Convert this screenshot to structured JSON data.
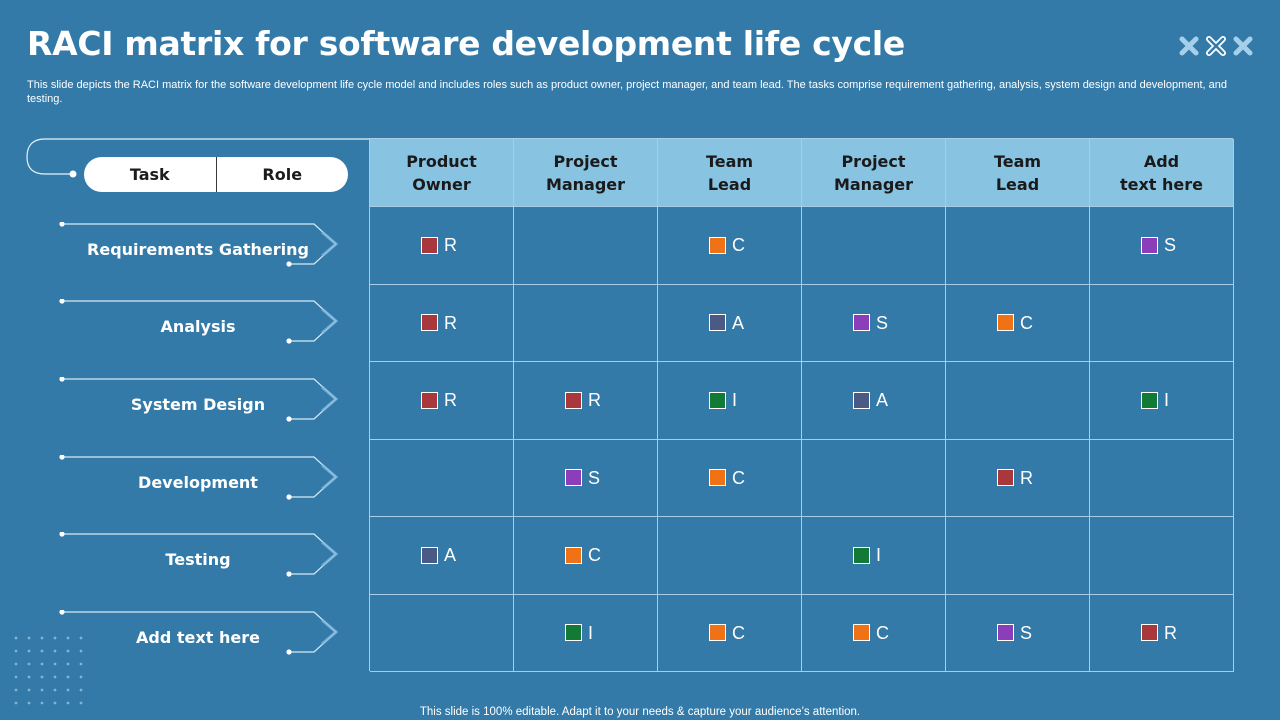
{
  "title": "RACI matrix for software development life cycle",
  "subtitle": "This slide depicts the RACI matrix for the software development life cycle model and includes roles such as product owner, project manager, and team lead. The tasks comprise requirement gathering, analysis, system design and development, and testing.",
  "footer": "This slide is 100% editable. Adapt it to your needs & capture your audience’s attention.",
  "pill": {
    "task": "Task",
    "role": "Role"
  },
  "columns": [
    {
      "line1": "Product",
      "line2": "Owner"
    },
    {
      "line1": "Project",
      "line2": "Manager"
    },
    {
      "line1": "Team",
      "line2": "Lead"
    },
    {
      "line1": "Project",
      "line2": "Manager"
    },
    {
      "line1": "Team",
      "line2": "Lead"
    },
    {
      "line1": "Add",
      "line2": "text here"
    }
  ],
  "tasks": [
    "Requirements Gathering",
    "Analysis",
    "System Design",
    "Development",
    "Testing",
    "Add text here"
  ],
  "legend_colors": {
    "R": "#a8383b",
    "A": "#4a5a85",
    "S": "#8b3dba",
    "C": "#f07216",
    "I": "#127a35"
  },
  "matrix": [
    [
      "R",
      "",
      "C",
      "",
      "",
      "S"
    ],
    [
      "R",
      "",
      "A",
      "S",
      "C",
      ""
    ],
    [
      "R",
      "R",
      "I",
      "A",
      "",
      "I"
    ],
    [
      "",
      "S",
      "C",
      "",
      "R",
      ""
    ],
    [
      "A",
      "C",
      "",
      "I",
      "",
      ""
    ],
    [
      "",
      "I",
      "C",
      "C",
      "S",
      "R"
    ]
  ]
}
